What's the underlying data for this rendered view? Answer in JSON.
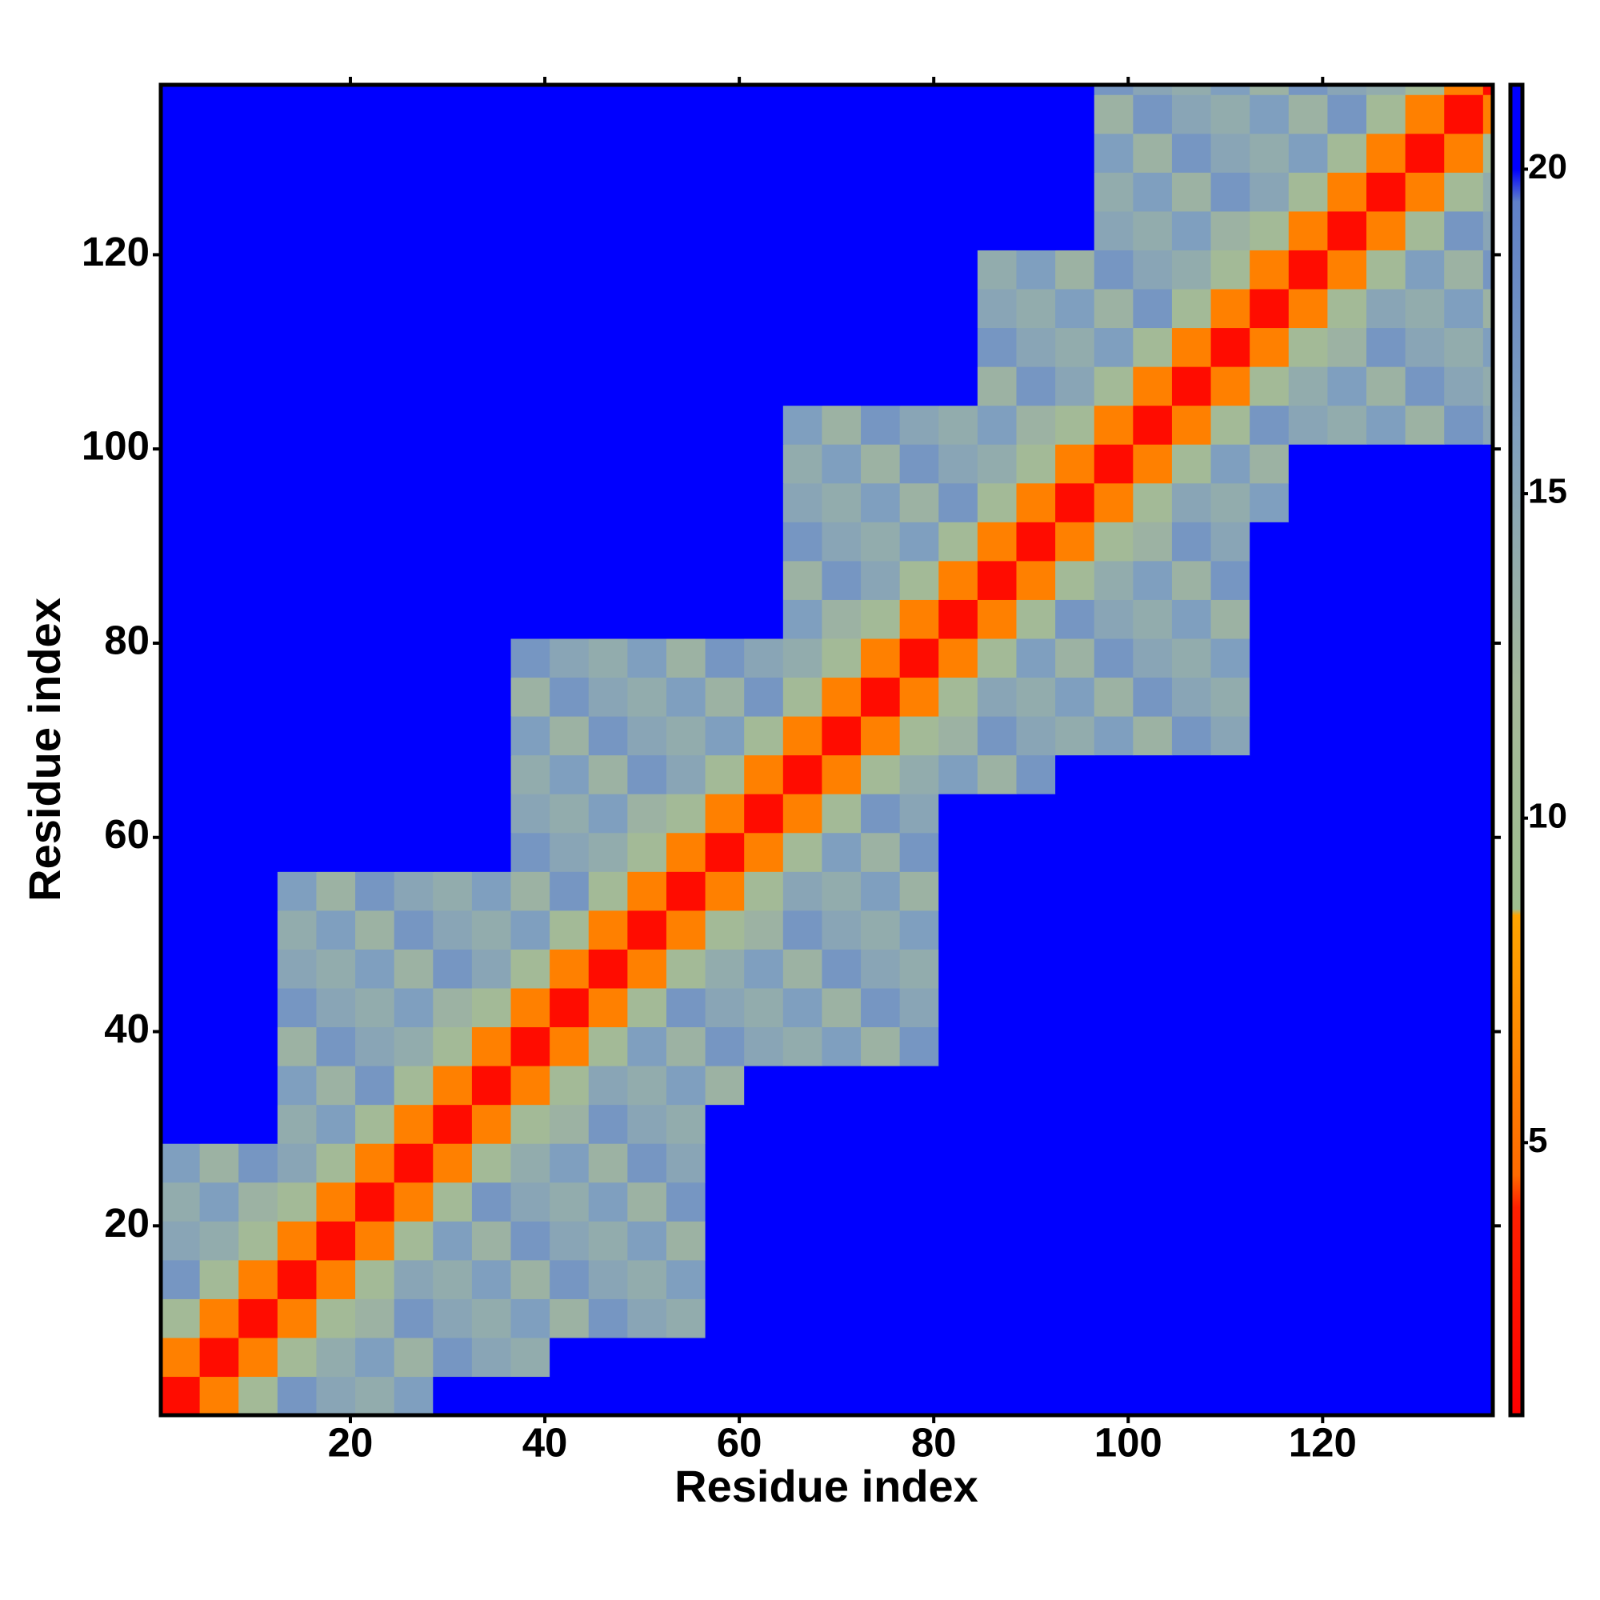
{
  "chart_data": {
    "type": "heatmap",
    "x_label": "Residue index",
    "y_label": "Residue index",
    "x": [
      2.5,
      6.5,
      10.5,
      14.5,
      18.5,
      22.5,
      26.5,
      30.5,
      34.5,
      38.5,
      42.5,
      46.5,
      50.5,
      54.5,
      58.5,
      62.5,
      66.5,
      70.5,
      74.5,
      78.5,
      82.5,
      86.5,
      90.5,
      94.5,
      98.5,
      102.5,
      106.5,
      110.5,
      114.5,
      118.5,
      122.5,
      126.5,
      130.5,
      134.5,
      138.5
    ],
    "y": [
      2.5,
      6.5,
      10.5,
      14.5,
      18.5,
      22.5,
      26.5,
      30.5,
      34.5,
      38.5,
      42.5,
      46.5,
      50.5,
      54.5,
      58.5,
      62.5,
      66.5,
      70.5,
      74.5,
      78.5,
      82.5,
      86.5,
      90.5,
      94.5,
      98.5,
      102.5,
      106.5,
      110.5,
      114.5,
      118.5,
      122.5,
      126.5,
      130.5,
      134.5,
      138.5
    ],
    "z": [
      [
        2,
        6,
        11,
        17,
        15,
        14,
        16,
        21,
        21,
        21,
        21,
        21,
        21,
        21,
        21,
        21,
        21,
        21,
        21,
        21,
        21,
        21,
        21,
        21,
        21,
        21,
        21,
        21,
        21,
        21,
        21,
        21,
        21,
        21,
        21
      ],
      [
        6,
        2,
        6,
        11,
        14,
        16,
        13,
        17,
        15,
        14,
        21,
        21,
        21,
        21,
        21,
        21,
        21,
        21,
        21,
        21,
        21,
        21,
        21,
        21,
        21,
        21,
        21,
        21,
        21,
        21,
        21,
        21,
        21,
        21,
        21
      ],
      [
        11,
        6,
        2,
        6,
        11,
        13,
        17,
        15,
        14,
        16,
        13,
        17,
        15,
        14,
        21,
        21,
        21,
        21,
        21,
        21,
        21,
        21,
        21,
        21,
        21,
        21,
        21,
        21,
        21,
        21,
        21,
        21,
        21,
        21,
        21
      ],
      [
        17,
        11,
        6,
        2,
        6,
        11,
        15,
        14,
        16,
        13,
        17,
        15,
        14,
        16,
        21,
        21,
        21,
        21,
        21,
        21,
        21,
        21,
        21,
        21,
        21,
        21,
        21,
        21,
        21,
        21,
        21,
        21,
        21,
        21,
        21
      ],
      [
        15,
        14,
        11,
        6,
        2,
        6,
        11,
        16,
        13,
        17,
        15,
        14,
        16,
        13,
        21,
        21,
        21,
        21,
        21,
        21,
        21,
        21,
        21,
        21,
        21,
        21,
        21,
        21,
        21,
        21,
        21,
        21,
        21,
        21,
        21
      ],
      [
        14,
        16,
        13,
        11,
        6,
        2,
        6,
        11,
        17,
        15,
        14,
        16,
        13,
        17,
        21,
        21,
        21,
        21,
        21,
        21,
        21,
        21,
        21,
        21,
        21,
        21,
        21,
        21,
        21,
        21,
        21,
        21,
        21,
        21,
        21
      ],
      [
        16,
        13,
        17,
        15,
        11,
        6,
        2,
        6,
        11,
        14,
        16,
        13,
        17,
        15,
        21,
        21,
        21,
        21,
        21,
        21,
        21,
        21,
        21,
        21,
        21,
        21,
        21,
        21,
        21,
        21,
        21,
        21,
        21,
        21,
        21
      ],
      [
        21,
        21,
        21,
        14,
        16,
        11,
        6,
        2,
        6,
        11,
        13,
        17,
        15,
        14,
        21,
        21,
        21,
        21,
        21,
        21,
        21,
        21,
        21,
        21,
        21,
        21,
        21,
        21,
        21,
        21,
        21,
        21,
        21,
        21,
        21
      ],
      [
        21,
        21,
        21,
        16,
        13,
        17,
        11,
        6,
        2,
        6,
        11,
        15,
        14,
        16,
        13,
        21,
        21,
        21,
        21,
        21,
        21,
        21,
        21,
        21,
        21,
        21,
        21,
        21,
        21,
        21,
        21,
        21,
        21,
        21,
        21
      ],
      [
        21,
        21,
        21,
        13,
        17,
        15,
        14,
        11,
        6,
        2,
        6,
        11,
        16,
        13,
        17,
        15,
        14,
        16,
        13,
        17,
        21,
        21,
        21,
        21,
        21,
        21,
        21,
        21,
        21,
        21,
        21,
        21,
        21,
        21,
        21
      ],
      [
        21,
        21,
        21,
        17,
        15,
        14,
        16,
        13,
        11,
        6,
        2,
        6,
        11,
        17,
        15,
        14,
        16,
        13,
        17,
        15,
        21,
        21,
        21,
        21,
        21,
        21,
        21,
        21,
        21,
        21,
        21,
        21,
        21,
        21,
        21
      ],
      [
        21,
        21,
        21,
        15,
        14,
        16,
        13,
        17,
        15,
        11,
        6,
        2,
        6,
        11,
        14,
        16,
        13,
        17,
        15,
        14,
        21,
        21,
        21,
        21,
        21,
        21,
        21,
        21,
        21,
        21,
        21,
        21,
        21,
        21,
        21
      ],
      [
        21,
        21,
        21,
        14,
        16,
        13,
        17,
        15,
        14,
        16,
        11,
        6,
        2,
        6,
        11,
        13,
        17,
        15,
        14,
        16,
        21,
        21,
        21,
        21,
        21,
        21,
        21,
        21,
        21,
        21,
        21,
        21,
        21,
        21,
        21
      ],
      [
        21,
        21,
        21,
        16,
        13,
        17,
        15,
        14,
        16,
        13,
        17,
        11,
        6,
        2,
        6,
        11,
        15,
        14,
        16,
        13,
        21,
        21,
        21,
        21,
        21,
        21,
        21,
        21,
        21,
        21,
        21,
        21,
        21,
        21,
        21
      ],
      [
        21,
        21,
        21,
        21,
        21,
        21,
        21,
        21,
        21,
        17,
        15,
        14,
        11,
        6,
        2,
        6,
        11,
        16,
        13,
        17,
        21,
        21,
        21,
        21,
        21,
        21,
        21,
        21,
        21,
        21,
        21,
        21,
        21,
        21,
        21
      ],
      [
        21,
        21,
        21,
        21,
        21,
        21,
        21,
        21,
        21,
        15,
        14,
        16,
        13,
        11,
        6,
        2,
        6,
        11,
        17,
        15,
        21,
        21,
        21,
        21,
        21,
        21,
        21,
        21,
        21,
        21,
        21,
        21,
        21,
        21,
        21
      ],
      [
        21,
        21,
        21,
        21,
        21,
        21,
        21,
        21,
        21,
        14,
        16,
        13,
        17,
        15,
        11,
        6,
        2,
        6,
        11,
        14,
        16,
        13,
        17,
        21,
        21,
        21,
        21,
        21,
        21,
        21,
        21,
        21,
        21,
        21,
        21
      ],
      [
        21,
        21,
        21,
        21,
        21,
        21,
        21,
        21,
        21,
        16,
        13,
        17,
        15,
        14,
        16,
        11,
        6,
        2,
        6,
        11,
        13,
        17,
        15,
        14,
        16,
        13,
        17,
        15,
        21,
        21,
        21,
        21,
        21,
        21,
        21
      ],
      [
        21,
        21,
        21,
        21,
        21,
        21,
        21,
        21,
        21,
        13,
        17,
        15,
        14,
        16,
        13,
        17,
        11,
        6,
        2,
        6,
        11,
        15,
        14,
        16,
        13,
        17,
        15,
        14,
        21,
        21,
        21,
        21,
        21,
        21,
        21
      ],
      [
        21,
        21,
        21,
        21,
        21,
        21,
        21,
        21,
        21,
        17,
        15,
        14,
        16,
        13,
        17,
        15,
        14,
        11,
        6,
        2,
        6,
        11,
        16,
        13,
        17,
        15,
        14,
        16,
        21,
        21,
        21,
        21,
        21,
        21,
        21
      ],
      [
        21,
        21,
        21,
        21,
        21,
        21,
        21,
        21,
        21,
        21,
        21,
        21,
        21,
        21,
        21,
        21,
        16,
        13,
        11,
        6,
        2,
        6,
        11,
        17,
        15,
        14,
        16,
        13,
        21,
        21,
        21,
        21,
        21,
        21,
        21
      ],
      [
        21,
        21,
        21,
        21,
        21,
        21,
        21,
        21,
        21,
        21,
        21,
        21,
        21,
        21,
        21,
        21,
        13,
        17,
        15,
        11,
        6,
        2,
        6,
        11,
        14,
        16,
        13,
        17,
        21,
        21,
        21,
        21,
        21,
        21,
        21
      ],
      [
        21,
        21,
        21,
        21,
        21,
        21,
        21,
        21,
        21,
        21,
        21,
        21,
        21,
        21,
        21,
        21,
        17,
        15,
        14,
        16,
        11,
        6,
        2,
        6,
        11,
        13,
        17,
        15,
        21,
        21,
        21,
        21,
        21,
        21,
        21
      ],
      [
        21,
        21,
        21,
        21,
        21,
        21,
        21,
        21,
        21,
        21,
        21,
        21,
        21,
        21,
        21,
        21,
        15,
        14,
        16,
        13,
        17,
        11,
        6,
        2,
        6,
        11,
        15,
        14,
        16,
        21,
        21,
        21,
        21,
        21,
        21
      ],
      [
        21,
        21,
        21,
        21,
        21,
        21,
        21,
        21,
        21,
        21,
        21,
        21,
        21,
        21,
        21,
        21,
        14,
        16,
        13,
        17,
        15,
        14,
        11,
        6,
        2,
        6,
        11,
        16,
        13,
        21,
        21,
        21,
        21,
        21,
        21
      ],
      [
        21,
        21,
        21,
        21,
        21,
        21,
        21,
        21,
        21,
        21,
        21,
        21,
        21,
        21,
        21,
        21,
        16,
        13,
        17,
        15,
        14,
        16,
        13,
        11,
        6,
        2,
        6,
        11,
        17,
        15,
        14,
        16,
        13,
        17,
        15
      ],
      [
        21,
        21,
        21,
        21,
        21,
        21,
        21,
        21,
        21,
        21,
        21,
        21,
        21,
        21,
        21,
        21,
        21,
        21,
        21,
        21,
        21,
        13,
        17,
        15,
        11,
        6,
        2,
        6,
        11,
        14,
        16,
        13,
        17,
        15,
        14
      ],
      [
        21,
        21,
        21,
        21,
        21,
        21,
        21,
        21,
        21,
        21,
        21,
        21,
        21,
        21,
        21,
        21,
        21,
        21,
        21,
        21,
        21,
        17,
        15,
        14,
        16,
        11,
        6,
        2,
        6,
        11,
        13,
        17,
        15,
        14,
        16
      ],
      [
        21,
        21,
        21,
        21,
        21,
        21,
        21,
        21,
        21,
        21,
        21,
        21,
        21,
        21,
        21,
        21,
        21,
        21,
        21,
        21,
        21,
        15,
        14,
        16,
        13,
        17,
        11,
        6,
        2,
        6,
        11,
        15,
        14,
        16,
        13
      ],
      [
        21,
        21,
        21,
        21,
        21,
        21,
        21,
        21,
        21,
        21,
        21,
        21,
        21,
        21,
        21,
        21,
        21,
        21,
        21,
        21,
        21,
        14,
        16,
        13,
        17,
        15,
        14,
        11,
        6,
        2,
        6,
        11,
        16,
        13,
        17
      ],
      [
        21,
        21,
        21,
        21,
        21,
        21,
        21,
        21,
        21,
        21,
        21,
        21,
        21,
        21,
        21,
        21,
        21,
        21,
        21,
        21,
        21,
        21,
        21,
        21,
        15,
        14,
        16,
        13,
        11,
        6,
        2,
        6,
        11,
        17,
        15
      ],
      [
        21,
        21,
        21,
        21,
        21,
        21,
        21,
        21,
        21,
        21,
        21,
        21,
        21,
        21,
        21,
        21,
        21,
        21,
        21,
        21,
        21,
        21,
        21,
        21,
        14,
        16,
        13,
        17,
        15,
        11,
        6,
        2,
        6,
        11,
        14
      ],
      [
        21,
        21,
        21,
        21,
        21,
        21,
        21,
        21,
        21,
        21,
        21,
        21,
        21,
        21,
        21,
        21,
        21,
        21,
        21,
        21,
        21,
        21,
        21,
        21,
        16,
        13,
        17,
        15,
        14,
        16,
        11,
        6,
        2,
        6,
        11
      ],
      [
        21,
        21,
        21,
        21,
        21,
        21,
        21,
        21,
        21,
        21,
        21,
        21,
        21,
        21,
        21,
        21,
        21,
        21,
        21,
        21,
        21,
        21,
        21,
        21,
        13,
        17,
        15,
        14,
        16,
        13,
        17,
        11,
        6,
        2,
        6
      ],
      [
        21,
        21,
        21,
        21,
        21,
        21,
        21,
        21,
        21,
        21,
        21,
        21,
        21,
        21,
        21,
        21,
        21,
        21,
        21,
        21,
        21,
        21,
        21,
        21,
        17,
        15,
        14,
        16,
        13,
        17,
        15,
        14,
        11,
        6,
        2
      ]
    ],
    "xlim": [
      0.5,
      137.5
    ],
    "ylim": [
      0.5,
      137.5
    ],
    "zlim": [
      0.8,
      21.3
    ],
    "xticks": [
      20,
      40,
      60,
      80,
      100,
      120
    ],
    "yticks": [
      20,
      40,
      60,
      80,
      100,
      120
    ],
    "zticks": [
      5,
      10,
      15,
      20
    ],
    "colorscale": [
      [
        0.8,
        "#ff0000"
      ],
      [
        4,
        "#ff2000"
      ],
      [
        4.5,
        "#ff6a00"
      ],
      [
        8.5,
        "#ffa500"
      ],
      [
        8.6,
        "#9fbf8f"
      ],
      [
        12,
        "#a5b89a"
      ],
      [
        16,
        "#7f9fbf"
      ],
      [
        19.5,
        "#5f80c8"
      ],
      [
        20,
        "#0000ff"
      ],
      [
        21.3,
        "#0000ff"
      ]
    ]
  }
}
